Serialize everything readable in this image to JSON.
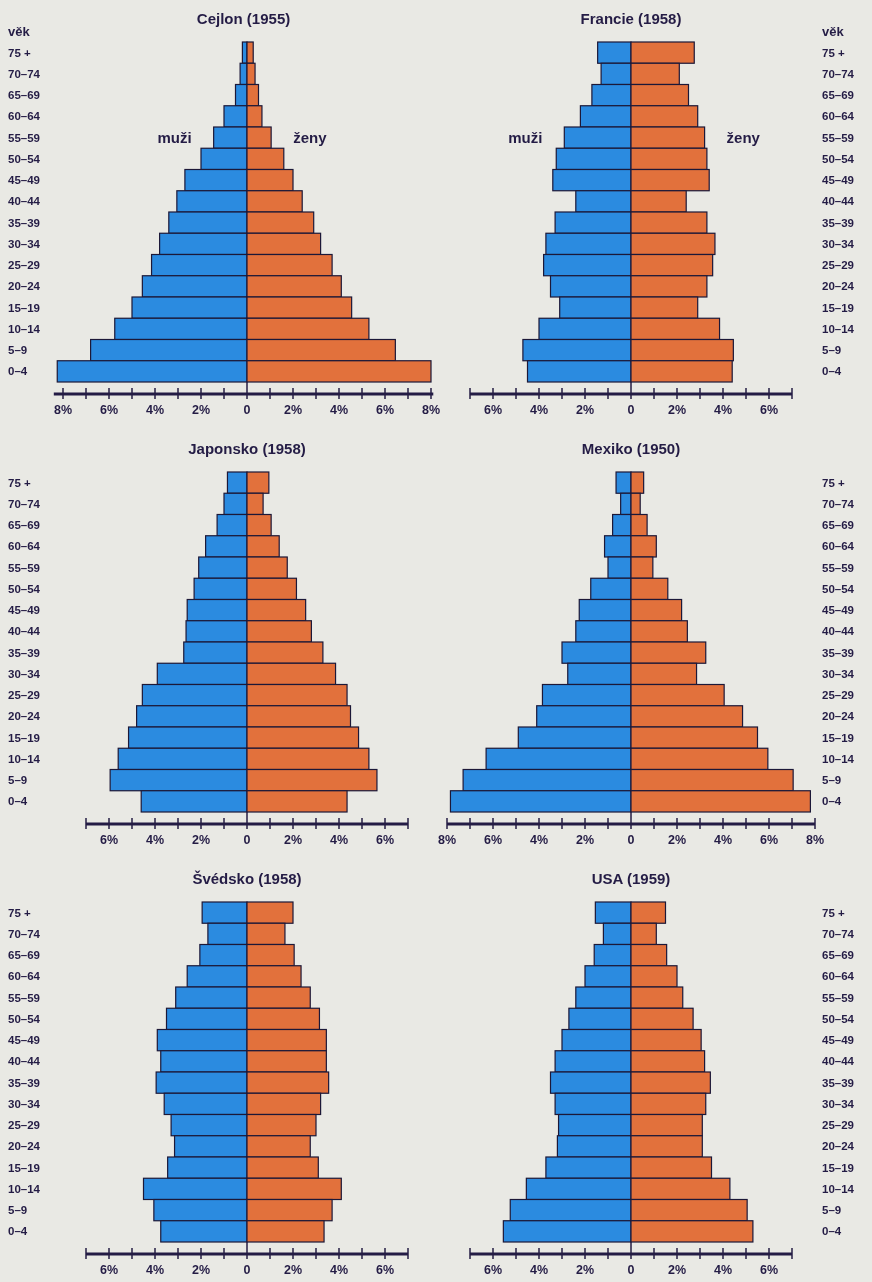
{
  "chart_data": [
    {
      "type": "bar",
      "orientation": "horizontal",
      "stacked": true,
      "title": "Cejlon (1955)",
      "ylabel": "věk",
      "categories": [
        "75 +",
        "70–74",
        "65–69",
        "60–64",
        "55–59",
        "50–54",
        "45–49",
        "40–44",
        "35–39",
        "30–34",
        "25–29",
        "20–24",
        "15–19",
        "10–14",
        "5–9",
        "0–4"
      ],
      "series": [
        {
          "name": "muži",
          "color": "#2b8be0",
          "values": [
            -0.2,
            -0.3,
            -0.5,
            -1.0,
            -1.45,
            -2.0,
            -2.7,
            -3.05,
            -3.4,
            -3.8,
            -4.15,
            -4.55,
            -5.0,
            -5.75,
            -6.8,
            -8.25
          ]
        },
        {
          "name": "ženy",
          "color": "#e2713c",
          "values": [
            0.27,
            0.35,
            0.5,
            0.65,
            1.05,
            1.6,
            2.0,
            2.4,
            2.9,
            3.2,
            3.7,
            4.1,
            4.55,
            5.3,
            6.45,
            8.0
          ]
        }
      ],
      "xlim": [
        -8.4,
        8.1
      ],
      "xticks": [
        {
          "value": -8,
          "label": "8%"
        },
        {
          "value": -7,
          "label": null
        },
        {
          "value": -6,
          "label": "6%"
        },
        {
          "value": -5,
          "label": null
        },
        {
          "value": -4,
          "label": "4%"
        },
        {
          "value": -3,
          "label": null
        },
        {
          "value": -2,
          "label": "2%"
        },
        {
          "value": -1,
          "label": null
        },
        {
          "value": 0,
          "label": "0"
        },
        {
          "value": 1,
          "label": null
        },
        {
          "value": 2,
          "label": "2%"
        },
        {
          "value": 3,
          "label": null
        },
        {
          "value": 4,
          "label": "4%"
        },
        {
          "value": 5,
          "label": null
        },
        {
          "value": 6,
          "label": "6%"
        },
        {
          "value": 7,
          "label": null
        },
        {
          "value": 8,
          "label": "8%"
        }
      ]
    },
    {
      "type": "bar",
      "orientation": "horizontal",
      "stacked": true,
      "title": "Francie (1958)",
      "ylabel": "věk",
      "categories": [
        "75 +",
        "70–74",
        "65–69",
        "60–64",
        "55–59",
        "50–54",
        "45–49",
        "40–44",
        "35–39",
        "30–34",
        "25–29",
        "20–24",
        "15–19",
        "10–14",
        "5–9",
        "0–4"
      ],
      "series": [
        {
          "name": "muži",
          "color": "#2b8be0",
          "values": [
            -1.45,
            -1.3,
            -1.7,
            -2.2,
            -2.9,
            -3.25,
            -3.4,
            -2.4,
            -3.3,
            -3.7,
            -3.8,
            -3.5,
            -3.1,
            -4.0,
            -4.7,
            -4.5
          ]
        },
        {
          "name": "ženy",
          "color": "#e2713c",
          "values": [
            2.75,
            2.1,
            2.5,
            2.9,
            3.2,
            3.3,
            3.4,
            2.4,
            3.3,
            3.65,
            3.55,
            3.3,
            2.9,
            3.85,
            4.45,
            4.4
          ]
        }
      ],
      "xlim": [
        -7,
        7
      ],
      "xticks": [
        {
          "value": -7,
          "label": null
        },
        {
          "value": -6,
          "label": "6%"
        },
        {
          "value": -5,
          "label": null
        },
        {
          "value": -4,
          "label": "4%"
        },
        {
          "value": -3,
          "label": null
        },
        {
          "value": -2,
          "label": "2%"
        },
        {
          "value": -1,
          "label": null
        },
        {
          "value": 0,
          "label": "0"
        },
        {
          "value": 1,
          "label": null
        },
        {
          "value": 2,
          "label": "2%"
        },
        {
          "value": 3,
          "label": null
        },
        {
          "value": 4,
          "label": "4%"
        },
        {
          "value": 5,
          "label": null
        },
        {
          "value": 6,
          "label": "6%"
        },
        {
          "value": 7,
          "label": null
        }
      ]
    },
    {
      "type": "bar",
      "orientation": "horizontal",
      "stacked": true,
      "title": "Japonsko (1958)",
      "categories": [
        "75 +",
        "70–74",
        "65–69",
        "60–64",
        "55–59",
        "50–54",
        "45–49",
        "40–44",
        "35–39",
        "30–34",
        "25–29",
        "20–24",
        "15–19",
        "10–14",
        "5–9",
        "0–4"
      ],
      "series": [
        {
          "color": "#2b8be0",
          "values": [
            -0.85,
            -1.0,
            -1.3,
            -1.8,
            -2.1,
            -2.3,
            -2.6,
            -2.65,
            -2.75,
            -3.9,
            -4.55,
            -4.8,
            -5.15,
            -5.6,
            -5.95,
            -4.6
          ]
        },
        {
          "color": "#e2713c",
          "values": [
            0.95,
            0.7,
            1.05,
            1.4,
            1.75,
            2.15,
            2.55,
            2.8,
            3.3,
            3.85,
            4.35,
            4.5,
            4.85,
            5.3,
            5.65,
            4.35
          ]
        }
      ],
      "xlim": [
        -7,
        7
      ],
      "xticks": [
        {
          "value": -7,
          "label": null
        },
        {
          "value": -6,
          "label": "6%"
        },
        {
          "value": -5,
          "label": null
        },
        {
          "value": -4,
          "label": "4%"
        },
        {
          "value": -3,
          "label": null
        },
        {
          "value": -2,
          "label": "2%"
        },
        {
          "value": -1,
          "label": null
        },
        {
          "value": 0,
          "label": "0"
        },
        {
          "value": 1,
          "label": null
        },
        {
          "value": 2,
          "label": "2%"
        },
        {
          "value": 3,
          "label": null
        },
        {
          "value": 4,
          "label": "4%"
        },
        {
          "value": 5,
          "label": null
        },
        {
          "value": 6,
          "label": "6%"
        },
        {
          "value": 7,
          "label": null
        }
      ]
    },
    {
      "type": "bar",
      "orientation": "horizontal",
      "stacked": true,
      "title": "Mexiko (1950)",
      "categories": [
        "75 +",
        "70–74",
        "65–69",
        "60–64",
        "55–59",
        "50–54",
        "45–49",
        "40–44",
        "35–39",
        "30–34",
        "25–29",
        "20–24",
        "15–19",
        "10–14",
        "5–9",
        "0–4"
      ],
      "series": [
        {
          "color": "#2b8be0",
          "values": [
            -0.65,
            -0.45,
            -0.8,
            -1.15,
            -1.0,
            -1.75,
            -2.25,
            -2.4,
            -3.0,
            -2.75,
            -3.85,
            -4.1,
            -4.9,
            -6.3,
            -7.3,
            -7.85
          ]
        },
        {
          "color": "#e2713c",
          "values": [
            0.55,
            0.4,
            0.7,
            1.1,
            0.95,
            1.6,
            2.2,
            2.45,
            3.25,
            2.85,
            4.05,
            4.85,
            5.5,
            5.95,
            7.05,
            7.8
          ]
        }
      ],
      "xlim": [
        -8,
        8
      ],
      "xticks": [
        {
          "value": -8,
          "label": "8%"
        },
        {
          "value": -7,
          "label": null
        },
        {
          "value": -6,
          "label": "6%"
        },
        {
          "value": -5,
          "label": null
        },
        {
          "value": -4,
          "label": "4%"
        },
        {
          "value": -3,
          "label": null
        },
        {
          "value": -2,
          "label": "2%"
        },
        {
          "value": -1,
          "label": null
        },
        {
          "value": 0,
          "label": "0"
        },
        {
          "value": 1,
          "label": null
        },
        {
          "value": 2,
          "label": "2%"
        },
        {
          "value": 3,
          "label": null
        },
        {
          "value": 4,
          "label": "4%"
        },
        {
          "value": 5,
          "label": null
        },
        {
          "value": 6,
          "label": "6%"
        },
        {
          "value": 7,
          "label": null
        },
        {
          "value": 8,
          "label": "8%"
        }
      ]
    },
    {
      "type": "bar",
      "orientation": "horizontal",
      "stacked": true,
      "title": "Švédsko (1958)",
      "categories": [
        "75 +",
        "70–74",
        "65–69",
        "60–64",
        "55–59",
        "50–54",
        "45–49",
        "40–44",
        "35–39",
        "30–34",
        "25–29",
        "20–24",
        "15–19",
        "10–14",
        "5–9",
        "0–4"
      ],
      "series": [
        {
          "color": "#2b8be0",
          "values": [
            -1.95,
            -1.7,
            -2.05,
            -2.6,
            -3.1,
            -3.5,
            -3.9,
            -3.75,
            -3.95,
            -3.6,
            -3.3,
            -3.15,
            -3.45,
            -4.5,
            -4.05,
            -3.75
          ]
        },
        {
          "color": "#e2713c",
          "values": [
            2.0,
            1.65,
            2.05,
            2.35,
            2.75,
            3.15,
            3.45,
            3.45,
            3.55,
            3.2,
            3.0,
            2.75,
            3.1,
            4.1,
            3.7,
            3.35
          ]
        }
      ],
      "xlim": [
        -7,
        7
      ],
      "xticks": [
        {
          "value": -7,
          "label": null
        },
        {
          "value": -6,
          "label": "6%"
        },
        {
          "value": -5,
          "label": null
        },
        {
          "value": -4,
          "label": "4%"
        },
        {
          "value": -3,
          "label": null
        },
        {
          "value": -2,
          "label": "2%"
        },
        {
          "value": -1,
          "label": null
        },
        {
          "value": 0,
          "label": "0"
        },
        {
          "value": 1,
          "label": null
        },
        {
          "value": 2,
          "label": "2%"
        },
        {
          "value": 3,
          "label": null
        },
        {
          "value": 4,
          "label": "4%"
        },
        {
          "value": 5,
          "label": null
        },
        {
          "value": 6,
          "label": "6%"
        },
        {
          "value": 7,
          "label": null
        }
      ]
    },
    {
      "type": "bar",
      "orientation": "horizontal",
      "stacked": true,
      "title": "USA (1959)",
      "categories": [
        "75 +",
        "70–74",
        "65–69",
        "60–64",
        "55–59",
        "50–54",
        "45–49",
        "40–44",
        "35–39",
        "30–34",
        "25–29",
        "20–24",
        "15–19",
        "10–14",
        "5–9",
        "0–4"
      ],
      "series": [
        {
          "color": "#2b8be0",
          "values": [
            -1.55,
            -1.2,
            -1.6,
            -2.0,
            -2.4,
            -2.7,
            -3.0,
            -3.3,
            -3.5,
            -3.3,
            -3.15,
            -3.2,
            -3.7,
            -4.55,
            -5.25,
            -5.55
          ]
        },
        {
          "color": "#e2713c",
          "values": [
            1.5,
            1.1,
            1.55,
            2.0,
            2.25,
            2.7,
            3.05,
            3.2,
            3.45,
            3.25,
            3.1,
            3.1,
            3.5,
            4.3,
            5.05,
            5.3
          ]
        }
      ],
      "xlim": [
        -7,
        7
      ],
      "xticks": [
        {
          "value": -7,
          "label": null
        },
        {
          "value": -6,
          "label": "6%"
        },
        {
          "value": -5,
          "label": null
        },
        {
          "value": -4,
          "label": "4%"
        },
        {
          "value": -3,
          "label": null
        },
        {
          "value": -2,
          "label": "2%"
        },
        {
          "value": -1,
          "label": null
        },
        {
          "value": 0,
          "label": "0"
        },
        {
          "value": 1,
          "label": null
        },
        {
          "value": 2,
          "label": "2%"
        },
        {
          "value": 3,
          "label": null
        },
        {
          "value": 4,
          "label": "4%"
        },
        {
          "value": 5,
          "label": null
        },
        {
          "value": 6,
          "label": "6%"
        },
        {
          "value": 7,
          "label": null
        }
      ]
    }
  ]
}
